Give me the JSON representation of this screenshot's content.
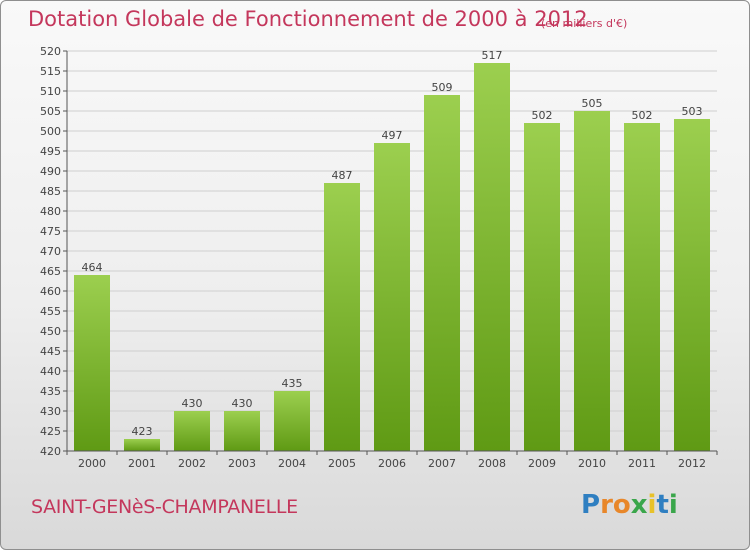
{
  "title": "Dotation Globale de Fonctionnement de 2000 à 2012",
  "subtitle": "(en milliers d'€)",
  "commune": "SAINT-GENèS-CHAMPANELLE",
  "logo": {
    "letters": [
      {
        "char": "P",
        "color": "#2f7fc1"
      },
      {
        "char": "r",
        "color": "#e8872a"
      },
      {
        "char": "o",
        "color": "#e8872a"
      },
      {
        "char": "x",
        "color": "#3aa64b"
      },
      {
        "char": "i",
        "color": "#e8c22a"
      },
      {
        "char": "t",
        "color": "#2f7fc1"
      },
      {
        "char": "i",
        "color": "#3aa64b"
      }
    ]
  },
  "colors": {
    "accent": "#c4375c",
    "bar_top": "#9ccf4f",
    "bar_bottom": "#5f9a14",
    "grid": "#cfcfcf",
    "axis": "#555555"
  },
  "chart_data": {
    "type": "bar",
    "title": "Dotation Globale de Fonctionnement de 2000 à 2012",
    "subtitle": "(en milliers d'€)",
    "xlabel": "",
    "ylabel": "",
    "categories": [
      "2000",
      "2001",
      "2002",
      "2003",
      "2004",
      "2005",
      "2006",
      "2007",
      "2008",
      "2009",
      "2010",
      "2011",
      "2012"
    ],
    "values": [
      464,
      423,
      430,
      430,
      435,
      487,
      497,
      509,
      517,
      502,
      505,
      502,
      503
    ],
    "value_labels": [
      "464",
      "423",
      "430",
      "430",
      "435",
      "487",
      "497",
      "509",
      "517",
      "502",
      "505",
      "502",
      "503"
    ],
    "ylim": [
      420,
      520
    ],
    "yticks": [
      "420",
      "425",
      "430",
      "435",
      "440",
      "445",
      "450",
      "455",
      "460",
      "465",
      "470",
      "475",
      "480",
      "485",
      "490",
      "495",
      "500",
      "505",
      "510",
      "515",
      "520"
    ],
    "grid": true,
    "legend": "none"
  }
}
